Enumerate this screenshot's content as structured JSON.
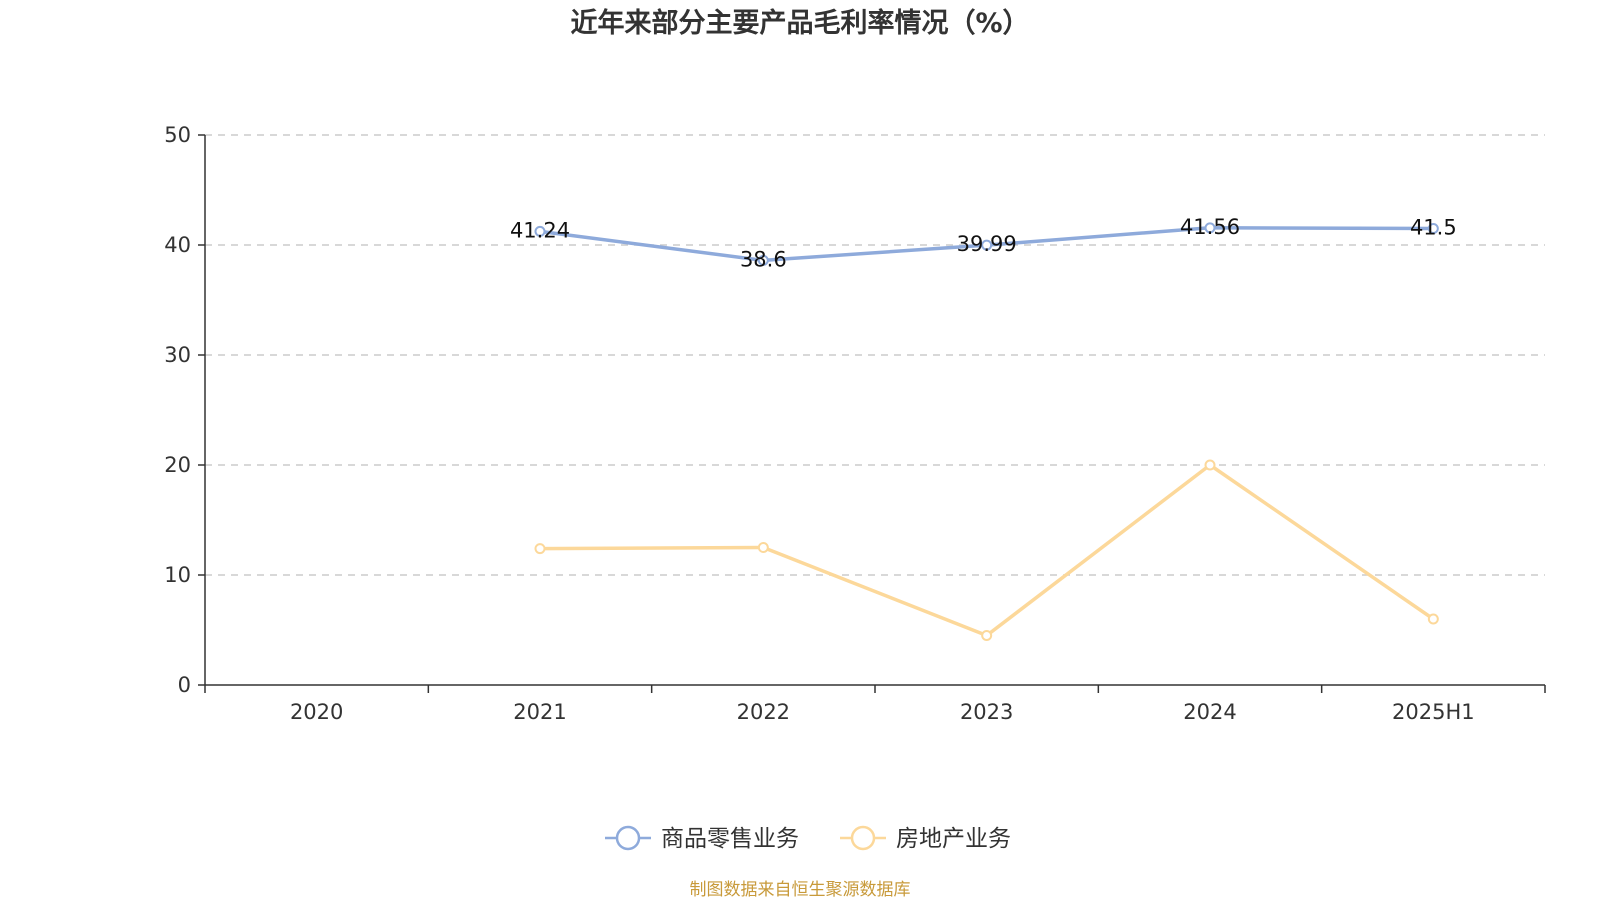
{
  "chart_data": {
    "type": "line",
    "title": "近年来部分主要产品毛利率情况（%）",
    "categories": [
      "2020",
      "2021",
      "2022",
      "2023",
      "2024",
      "2025H1"
    ],
    "ylim": [
      0,
      50
    ],
    "yticks": [
      0,
      10,
      20,
      30,
      40,
      50
    ],
    "grid": true,
    "legend_position": "bottom",
    "series": [
      {
        "name": "商品零售业务",
        "color": "#8eaadb",
        "values": [
          null,
          41.24,
          38.6,
          39.99,
          41.56,
          41.5
        ],
        "labels": [
          null,
          "41.24",
          "38.6",
          "39.99",
          "41.56",
          "41.5"
        ],
        "show_labels": true
      },
      {
        "name": "房地产业务",
        "color": "#fcd89a",
        "values": [
          null,
          12.4,
          12.5,
          4.5,
          20.0,
          6.0
        ],
        "labels": [
          null,
          null,
          null,
          null,
          null,
          null
        ],
        "show_labels": false
      }
    ],
    "source": "制图数据来自恒生聚源数据库",
    "source_color": "#c89a3a"
  }
}
